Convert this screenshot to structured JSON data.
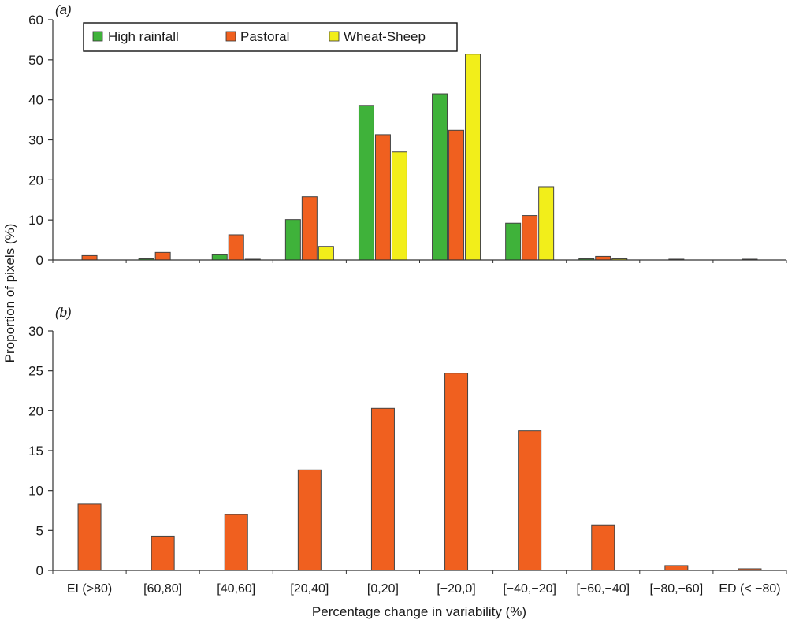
{
  "ylabel": "Proportion of pixels (%)",
  "xlabel": "Percentage change in variability (%)",
  "colors": {
    "High rainfall": "#3fb23a",
    "Pastoral": "#f0601f",
    "Wheat-Sheep": "#f2ee1a"
  },
  "chart_data": [
    {
      "type": "bar",
      "panel_label": "(a)",
      "categories": [
        "EI (>80)",
        "[60,80]",
        "[40,60]",
        "[20,40]",
        "[0,20]",
        "[−20,0]",
        "[−40,−20]",
        "[−60,−40]",
        "[−80,−60]",
        "ED (< −80)"
      ],
      "series": [
        {
          "name": "High rainfall",
          "values": [
            0,
            0.3,
            1.3,
            10.1,
            38.6,
            41.5,
            9.2,
            0.3,
            0,
            0
          ]
        },
        {
          "name": "Pastoral",
          "values": [
            1.1,
            1.9,
            6.3,
            15.8,
            31.3,
            32.4,
            11.1,
            0.9,
            0.2,
            0.2
          ]
        },
        {
          "name": "Wheat-Sheep",
          "values": [
            0,
            0,
            0.2,
            3.4,
            27.0,
            51.4,
            18.3,
            0.3,
            0,
            0
          ]
        }
      ],
      "ylim": [
        0,
        60
      ],
      "yticks": [
        0,
        10,
        20,
        30,
        40,
        50,
        60
      ],
      "legend": "top-left"
    },
    {
      "type": "bar",
      "panel_label": "(b)",
      "categories": [
        "EI (>80)",
        "[60,80]",
        "[40,60]",
        "[20,40]",
        "[0,20]",
        "[−20,0]",
        "[−40,−20]",
        "[−60,−40]",
        "[−80,−60]",
        "ED (< −80)"
      ],
      "series": [
        {
          "name": "",
          "values": [
            8.3,
            4.3,
            7.0,
            12.6,
            20.3,
            24.7,
            17.5,
            5.7,
            0.6,
            0.2
          ]
        }
      ],
      "ylim": [
        0,
        30
      ],
      "yticks": [
        0,
        5,
        10,
        15,
        20,
        25,
        30
      ]
    }
  ]
}
